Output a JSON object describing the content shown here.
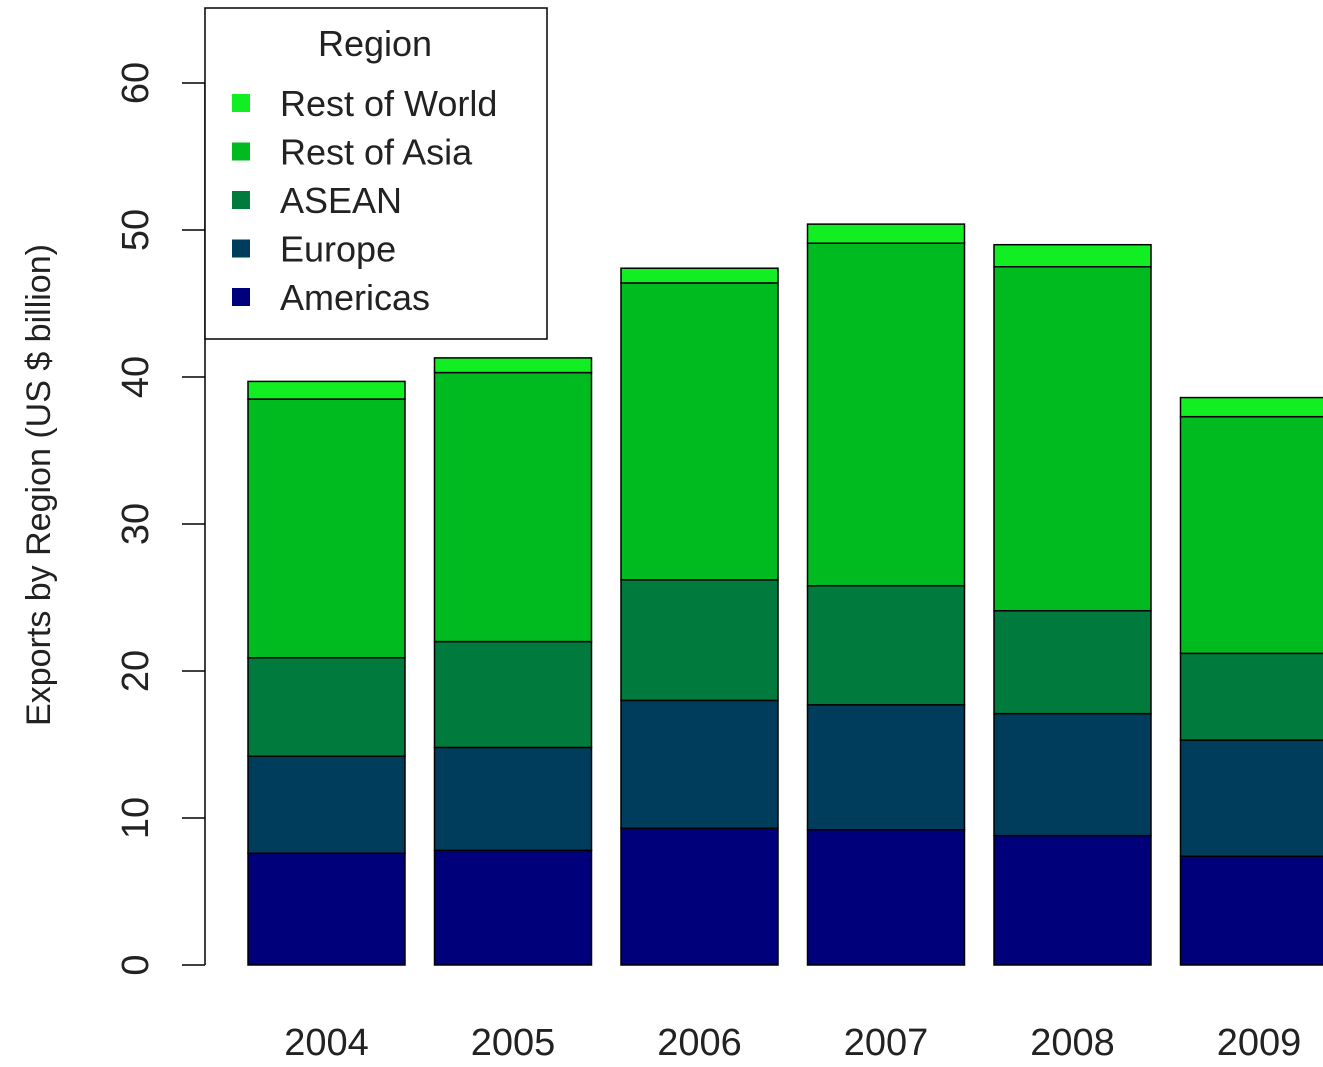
{
  "chart_data": {
    "type": "bar",
    "stacked": true,
    "ylabel": "Exports by Region (US $ billion)",
    "xlabel": "",
    "ylim": [
      0,
      65
    ],
    "yticks": [
      0,
      10,
      20,
      30,
      40,
      50,
      60
    ],
    "categories": [
      "2004",
      "2005",
      "2006",
      "2007",
      "2008",
      "2009"
    ],
    "series": [
      {
        "name": "Americas",
        "color": "#00007a",
        "values": [
          7.6,
          7.8,
          9.3,
          9.2,
          8.8,
          7.4
        ]
      },
      {
        "name": "Europe",
        "color": "#003d5c",
        "values": [
          6.6,
          7.0,
          8.7,
          8.5,
          8.3,
          7.9
        ]
      },
      {
        "name": "ASEAN",
        "color": "#007a3d",
        "values": [
          6.7,
          7.2,
          8.2,
          8.1,
          7.0,
          5.9
        ]
      },
      {
        "name": "Rest of Asia",
        "color": "#00bb20",
        "values": [
          17.6,
          18.3,
          20.2,
          23.3,
          23.4,
          16.1
        ]
      },
      {
        "name": "Rest of World",
        "color": "#11ee22",
        "values": [
          1.2,
          1.0,
          1.0,
          1.3,
          1.5,
          1.3
        ]
      }
    ],
    "legend": {
      "title": "Region",
      "position": "top-left",
      "order": [
        "Rest of World",
        "Rest of Asia",
        "ASEAN",
        "Europe",
        "Americas"
      ]
    },
    "grid": false
  }
}
